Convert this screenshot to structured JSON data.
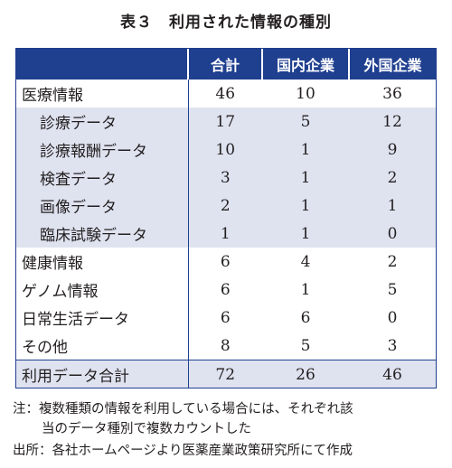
{
  "title": "表３　利用された情報の種別",
  "table": {
    "headers": [
      "",
      "合計",
      "国内企業",
      "外国企業"
    ],
    "rows": [
      {
        "label": "医療情報",
        "values": [
          "46",
          "10",
          "36"
        ],
        "type": "top"
      },
      {
        "label": "診療データ",
        "values": [
          "17",
          "5",
          "12"
        ],
        "type": "sub"
      },
      {
        "label": "診療報酬データ",
        "values": [
          "10",
          "1",
          "9"
        ],
        "type": "sub"
      },
      {
        "label": "検査データ",
        "values": [
          "3",
          "1",
          "2"
        ],
        "type": "sub"
      },
      {
        "label": "画像データ",
        "values": [
          "2",
          "1",
          "1"
        ],
        "type": "sub"
      },
      {
        "label": "臨床試験データ",
        "values": [
          "1",
          "1",
          "0"
        ],
        "type": "sub"
      },
      {
        "label": "健康情報",
        "values": [
          "6",
          "4",
          "2"
        ],
        "type": "top"
      },
      {
        "label": "ゲノム情報",
        "values": [
          "6",
          "1",
          "5"
        ],
        "type": "top"
      },
      {
        "label": "日常生活データ",
        "values": [
          "6",
          "6",
          "0"
        ],
        "type": "top"
      },
      {
        "label": "その他",
        "values": [
          "8",
          "5",
          "3"
        ],
        "type": "top"
      },
      {
        "label": "利用データ合計",
        "values": [
          "72",
          "26",
          "46"
        ],
        "type": "total"
      }
    ]
  },
  "notes": {
    "note_line1": "注：複数種類の情報を利用している場合には、それぞれ該",
    "note_line2": "当のデータ種別で複数カウントした",
    "source": "出所：各社ホームページより医薬産業政策研究所にて作成"
  }
}
